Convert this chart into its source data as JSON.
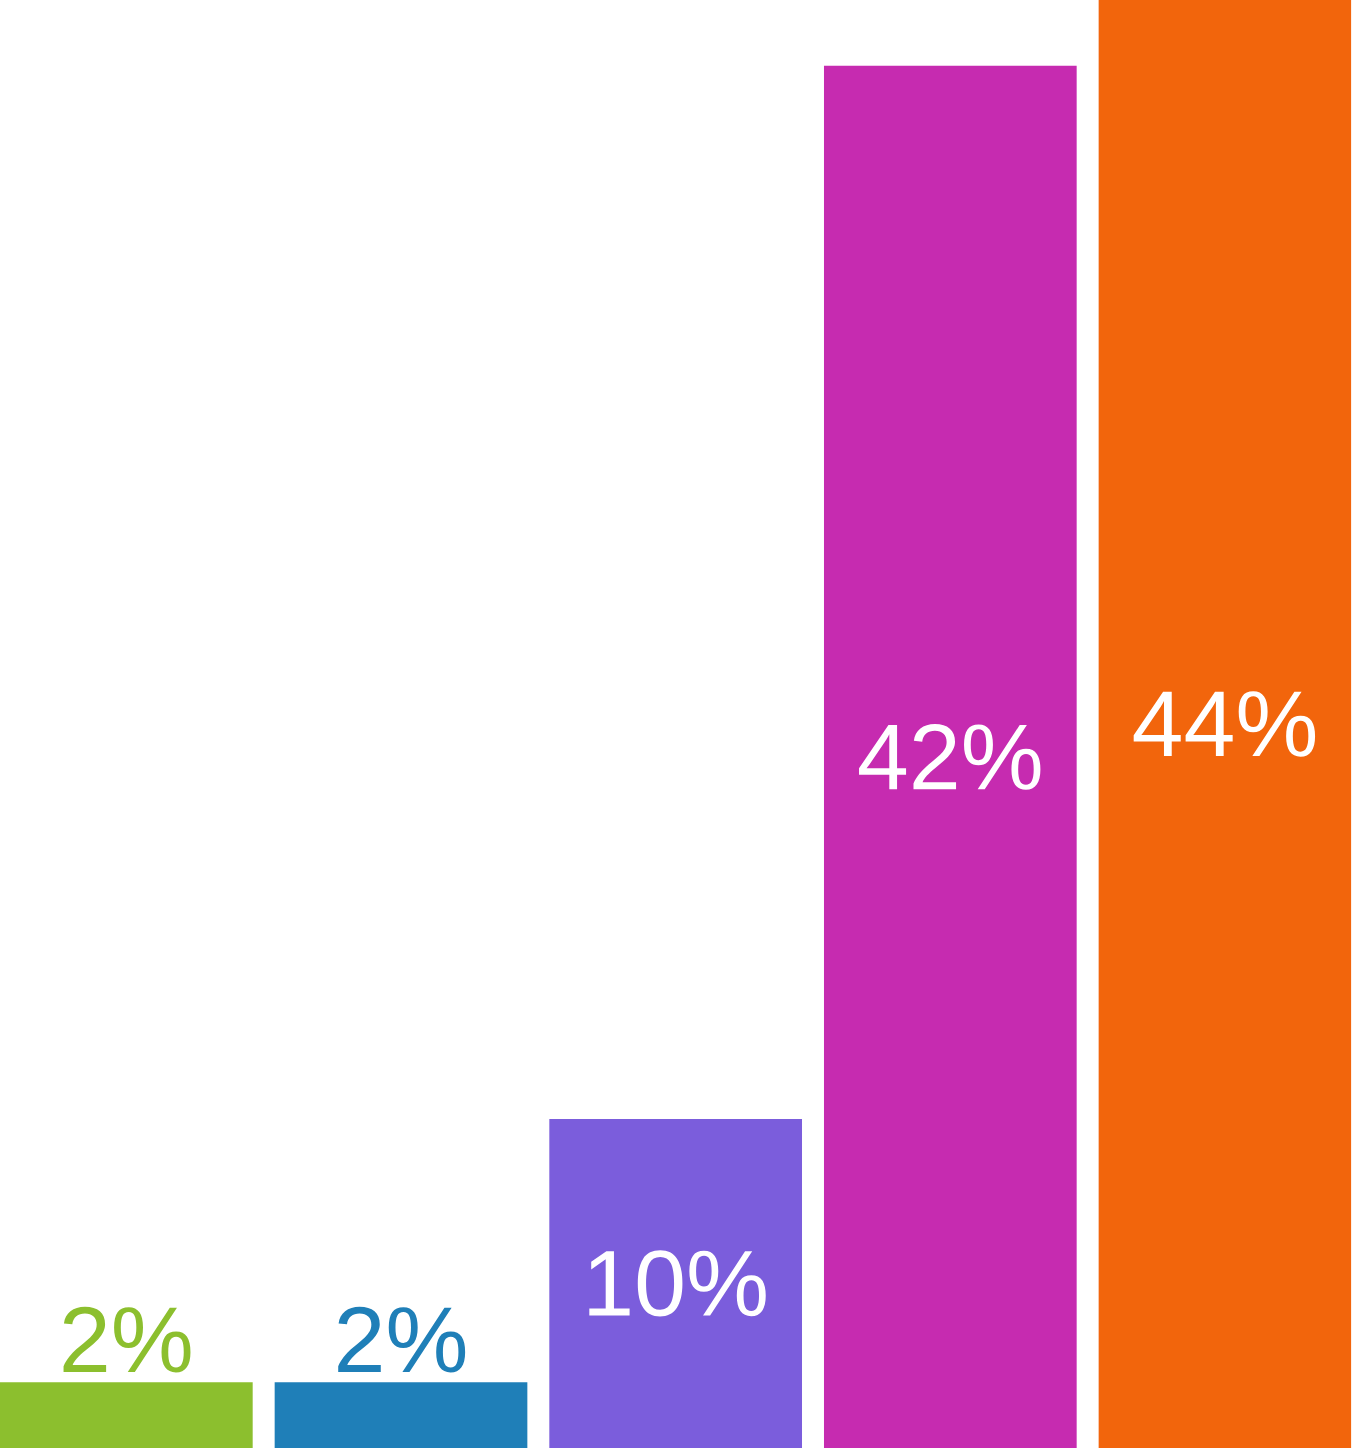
{
  "chart_data": {
    "type": "bar",
    "categories": [
      null,
      null,
      null,
      null,
      null
    ],
    "values": [
      2,
      2,
      10,
      42,
      44
    ],
    "colors": [
      "#8cbf2e",
      "#1f7fb8",
      "#7b5ddc",
      "#c62bb0",
      "#f2650c"
    ],
    "value_labels": [
      "2%",
      "2%",
      "10%",
      "42%",
      "44%"
    ]
  }
}
